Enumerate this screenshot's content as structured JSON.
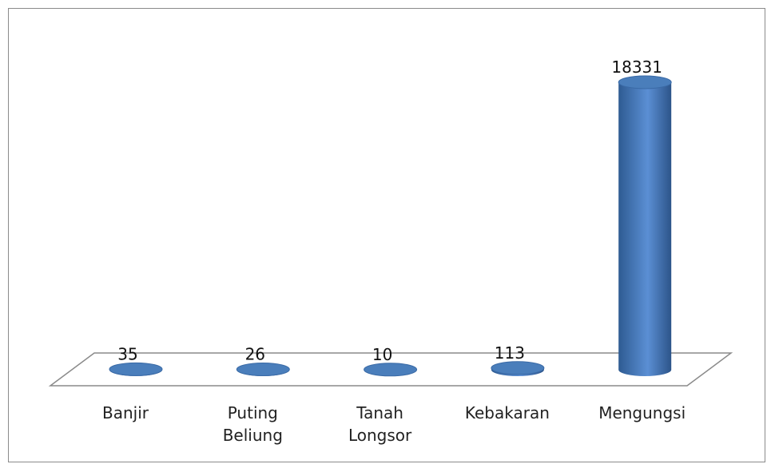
{
  "chart_data": {
    "type": "bar",
    "categories": [
      "Banjir",
      "Puting Beliung",
      "Tanah Longsor",
      "Kebakaran",
      "Mengungsi"
    ],
    "values": [
      35,
      26,
      10,
      113,
      18331
    ],
    "color": "#4a7ebb"
  }
}
